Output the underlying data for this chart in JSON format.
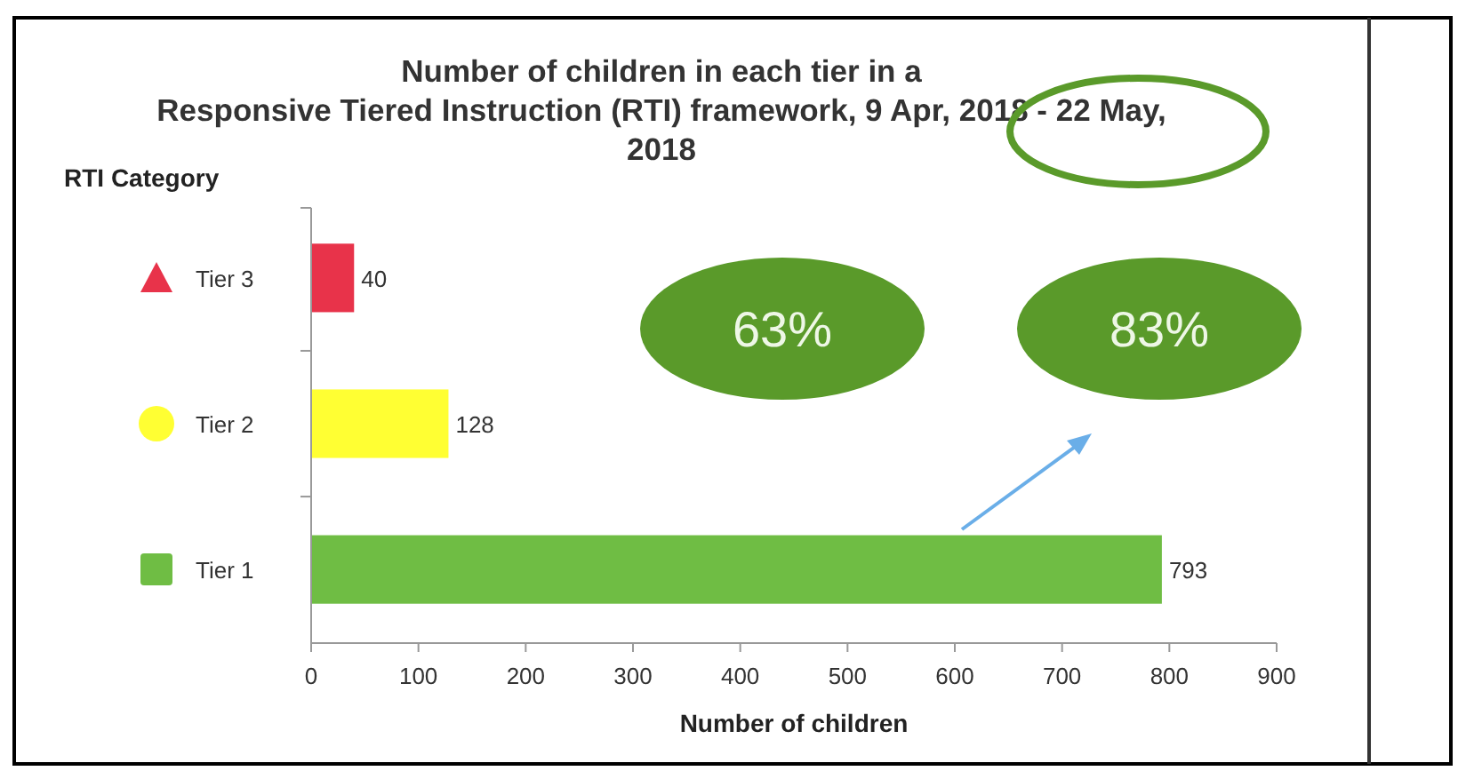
{
  "chart_data": {
    "type": "bar",
    "orientation": "horizontal",
    "title": "Number of children in each tier in a\nResponsive Tiered Instruction (RTI) framework, 9 Apr, 2018 - 22 May,\n2018",
    "ylabel": "RTI Category",
    "xlabel": "Number of children",
    "categories": [
      "Tier 3",
      "Tier 2",
      "Tier 1"
    ],
    "values": [
      40,
      128,
      793
    ],
    "colors": [
      "#e8334a",
      "#ffff33",
      "#6fbd44"
    ],
    "data_labels": true,
    "xlim": [
      0,
      900
    ],
    "xticks": [
      0,
      100,
      200,
      300,
      400,
      500,
      600,
      700,
      800,
      900
    ],
    "annotations": [
      "63%",
      "83%"
    ]
  }
}
